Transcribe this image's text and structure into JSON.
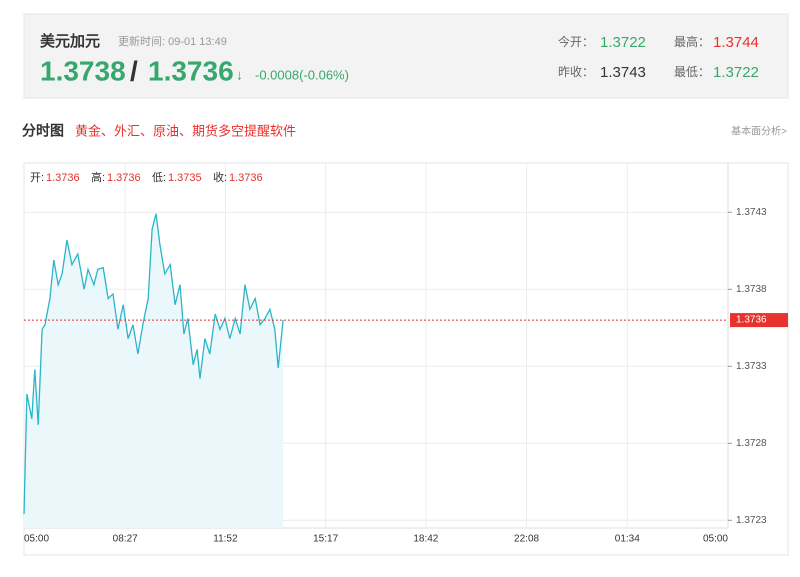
{
  "header": {
    "title": "美元加元",
    "update_time": "更新时间: 09-01 13:49",
    "bid": 1.3738,
    "separator": "/",
    "ask": 1.3736,
    "arrow": "↓",
    "change": "-0.0008(-0.06%)",
    "stats": [
      {
        "label": "今开：",
        "value": 1.3722
      },
      {
        "label": "最高：",
        "value": 1.3744
      },
      {
        "label": "昨收：",
        "value": 1.3743
      },
      {
        "label": "最低：",
        "value": 1.3722
      }
    ]
  },
  "section": {
    "title": "分时图",
    "promo": "黄金、外汇、原油、期货多空提醒软件",
    "link": "基本面分析>"
  },
  "chart_data": {
    "type": "line",
    "color": "#2bb5c8",
    "fill": "#eaf7fb",
    "ohlc": [
      {
        "label": "开:",
        "value": 1.3736
      },
      {
        "label": "高:",
        "value": 1.3736
      },
      {
        "label": "低:",
        "value": 1.3735
      },
      {
        "label": "收:",
        "value": 1.3736
      }
    ],
    "last_price": 1.3736,
    "last_color": "#e8322d",
    "x": [
      0,
      6,
      16,
      22,
      29,
      37,
      43,
      53,
      61,
      70,
      78,
      88,
      98,
      110,
      123,
      131,
      143,
      151,
      162,
      172,
      182,
      192,
      203,
      213,
      223,
      233,
      243,
      254,
      262,
      270,
      278,
      288,
      299,
      309,
      319,
      327,
      335,
      346,
      354,
      360,
      370,
      380,
      391,
      401,
      411,
      421,
      432,
      442,
      452,
      462,
      473,
      483,
      493,
      503,
      513,
      520,
      530
    ],
    "values": [
      1.37234,
      1.37312,
      1.37296,
      1.37328,
      1.37292,
      1.37354,
      1.37357,
      1.37374,
      1.37399,
      1.37383,
      1.3739,
      1.37412,
      1.37396,
      1.37403,
      1.3738,
      1.37393,
      1.37383,
      1.37393,
      1.37394,
      1.37374,
      1.37377,
      1.37354,
      1.3737,
      1.37348,
      1.37357,
      1.37338,
      1.37357,
      1.37374,
      1.37419,
      1.37429,
      1.37409,
      1.3739,
      1.37396,
      1.3737,
      1.37383,
      1.37351,
      1.37361,
      1.37331,
      1.37341,
      1.37322,
      1.37348,
      1.37338,
      1.37364,
      1.37354,
      1.37361,
      1.37348,
      1.37361,
      1.37351,
      1.37383,
      1.37367,
      1.37374,
      1.37357,
      1.37361,
      1.37367,
      1.37354,
      1.37329,
      1.3736
    ],
    "xlim": [
      0,
      1440
    ],
    "xticks": [
      {
        "value": 0,
        "label": "05:00"
      },
      {
        "value": 207,
        "label": "08:27"
      },
      {
        "value": 412,
        "label": "11:52"
      },
      {
        "value": 617,
        "label": "15:17"
      },
      {
        "value": 822,
        "label": "18:42"
      },
      {
        "value": 1028,
        "label": "22:08"
      },
      {
        "value": 1234,
        "label": "01:34"
      },
      {
        "value": 1440,
        "label": "05:00"
      }
    ],
    "ylim": [
      1.37225,
      1.37462
    ],
    "yticks": [
      1.3743,
      1.3738,
      1.3733,
      1.3728,
      1.3723
    ],
    "grid": true
  }
}
